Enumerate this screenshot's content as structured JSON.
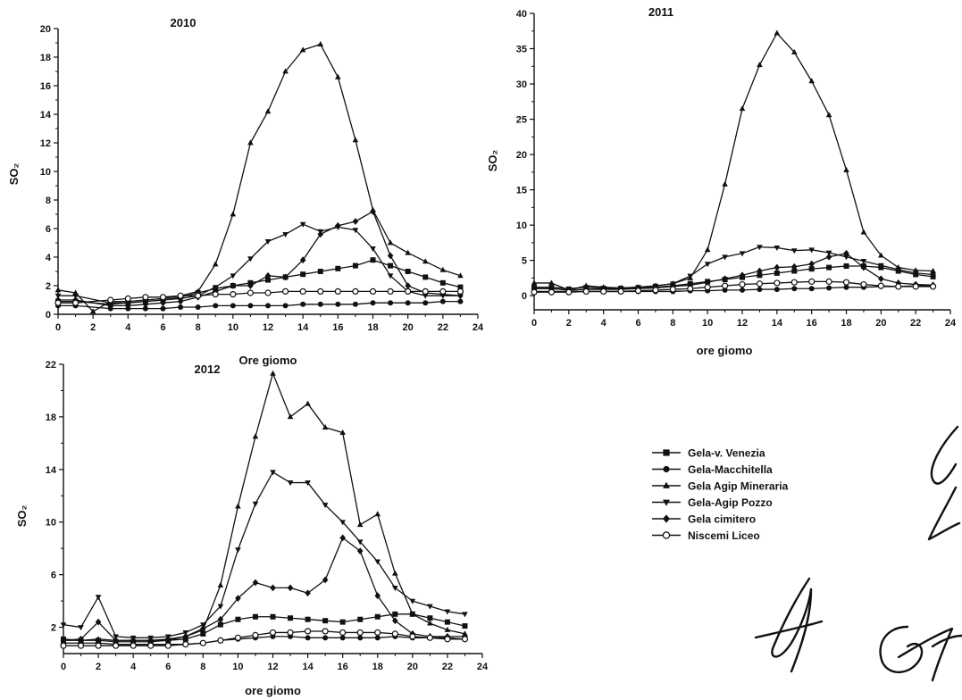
{
  "chart_data": [
    {
      "type": "line",
      "title": "2010",
      "xlabel": "Ore giomo",
      "ylabel": "SO₂",
      "xlim": [
        0,
        24
      ],
      "ylim": [
        0,
        20
      ],
      "xticks": [
        0,
        2,
        4,
        6,
        8,
        10,
        12,
        14,
        16,
        18,
        20,
        22,
        24
      ],
      "yticks": [
        0,
        2,
        4,
        6,
        8,
        10,
        12,
        14,
        16,
        18,
        20
      ],
      "x": [
        0,
        1,
        2,
        3,
        4,
        5,
        6,
        7,
        8,
        9,
        10,
        11,
        12,
        13,
        14,
        15,
        16,
        17,
        18,
        19,
        20,
        21,
        22,
        23
      ],
      "grid": false,
      "series": [
        {
          "name": "Gela-v. Venezia",
          "values": [
            0.9,
            0.9,
            null,
            0.7,
            0.8,
            0.9,
            1.0,
            1.2,
            1.5,
            1.8,
            2.0,
            2.2,
            2.4,
            2.6,
            2.8,
            3.0,
            3.2,
            3.4,
            3.8,
            3.4,
            3.0,
            2.6,
            2.2,
            1.9
          ]
        },
        {
          "name": "Gela-Macchitella",
          "values": [
            0.6,
            0.6,
            null,
            0.4,
            0.4,
            0.4,
            0.4,
            0.5,
            0.5,
            0.6,
            0.6,
            0.6,
            0.6,
            0.6,
            0.7,
            0.7,
            0.7,
            0.7,
            0.8,
            0.8,
            0.8,
            0.8,
            0.9,
            0.9
          ]
        },
        {
          "name": "Gela Agip Mineraria",
          "values": [
            1.7,
            1.5,
            0.2,
            0.9,
            0.9,
            1.0,
            1.1,
            1.3,
            1.6,
            3.5,
            7.0,
            12.0,
            14.2,
            17.0,
            18.5,
            18.9,
            16.6,
            12.2,
            7.3,
            5.0,
            4.3,
            3.7,
            3.1,
            2.7
          ]
        },
        {
          "name": "Gela-Agip Pozzo",
          "values": [
            1.3,
            1.3,
            null,
            0.8,
            0.8,
            0.9,
            1.0,
            1.1,
            1.3,
            1.9,
            2.7,
            3.9,
            5.1,
            5.6,
            6.3,
            5.8,
            6.1,
            5.9,
            4.6,
            2.7,
            1.6,
            1.3,
            1.3,
            1.3
          ]
        },
        {
          "name": "Gela cimitero",
          "values": [
            1.0,
            1.0,
            null,
            0.6,
            0.6,
            0.7,
            0.8,
            0.9,
            1.2,
            1.6,
            2.0,
            2.0,
            2.7,
            2.6,
            3.8,
            5.6,
            6.2,
            6.5,
            7.2,
            4.1,
            2.0,
            1.5,
            1.4,
            1.3
          ]
        },
        {
          "name": "Niscemi Liceo",
          "values": [
            0.8,
            0.8,
            null,
            1.0,
            1.1,
            1.2,
            1.2,
            1.3,
            1.3,
            1.4,
            1.4,
            1.5,
            1.5,
            1.6,
            1.6,
            1.6,
            1.6,
            1.6,
            1.6,
            1.6,
            1.6,
            1.6,
            1.6,
            1.6
          ]
        }
      ]
    },
    {
      "type": "line",
      "title": "2011",
      "xlabel": "ore giomo",
      "ylabel": "SO₂",
      "xlim": [
        0,
        24
      ],
      "ylim": [
        -2,
        40
      ],
      "xticks": [
        0,
        2,
        4,
        6,
        8,
        10,
        12,
        14,
        16,
        18,
        20,
        22,
        24
      ],
      "yticks": [
        0,
        5,
        10,
        15,
        20,
        25,
        30,
        35,
        40
      ],
      "x": [
        0,
        1,
        2,
        3,
        4,
        5,
        6,
        7,
        8,
        9,
        10,
        11,
        12,
        13,
        14,
        15,
        16,
        17,
        18,
        19,
        20,
        21,
        22,
        23
      ],
      "grid": false,
      "series": [
        {
          "name": "Gela-v. Venezia",
          "values": [
            1.0,
            1.0,
            0.8,
            0.9,
            1.0,
            1.0,
            1.1,
            1.2,
            1.4,
            1.7,
            2.0,
            2.3,
            2.6,
            2.9,
            3.2,
            3.5,
            3.8,
            4.0,
            4.2,
            4.2,
            4.0,
            3.5,
            3.0,
            2.7
          ]
        },
        {
          "name": "Gela-Macchitella",
          "values": [
            0.6,
            0.6,
            0.6,
            0.6,
            0.6,
            0.6,
            0.6,
            0.6,
            0.6,
            0.7,
            0.7,
            0.8,
            0.8,
            0.9,
            0.9,
            1.0,
            1.0,
            1.1,
            1.2,
            1.2,
            1.3,
            1.3,
            1.4,
            1.4
          ]
        },
        {
          "name": "Gela Agip Mineraria",
          "values": [
            1.8,
            1.8,
            0.8,
            1.4,
            1.2,
            1.1,
            1.2,
            1.4,
            1.7,
            2.5,
            6.5,
            15.8,
            26.5,
            32.7,
            37.2,
            34.5,
            30.4,
            25.6,
            17.8,
            9.0,
            5.7,
            4.0,
            3.6,
            3.5
          ]
        },
        {
          "name": "Gela-Agip Pozzo",
          "values": [
            1.2,
            1.2,
            1.0,
            1.2,
            1.1,
            1.1,
            1.2,
            1.4,
            1.7,
            2.8,
            4.5,
            5.5,
            6.0,
            6.9,
            6.8,
            6.4,
            6.5,
            6.1,
            5.5,
            4.9,
            4.3,
            3.7,
            3.2,
            3.0
          ]
        },
        {
          "name": "Gela cimitero",
          "values": [
            1.0,
            1.0,
            0.8,
            0.9,
            0.9,
            0.9,
            1.0,
            1.1,
            1.3,
            1.5,
            1.9,
            2.4,
            2.9,
            3.5,
            4.0,
            4.1,
            4.5,
            5.5,
            6.0,
            4.0,
            2.4,
            1.8,
            1.6,
            1.5
          ]
        },
        {
          "name": "Niscemi Liceo",
          "values": [
            0.5,
            0.5,
            0.5,
            0.6,
            0.6,
            0.6,
            0.7,
            0.8,
            0.9,
            1.0,
            1.2,
            1.4,
            1.6,
            1.7,
            1.8,
            1.9,
            2.0,
            2.0,
            1.9,
            1.6,
            1.4,
            1.3,
            1.3,
            1.3
          ]
        }
      ]
    },
    {
      "type": "line",
      "title": "2012",
      "xlabel": "ore giomo",
      "ylabel": "SO₂",
      "xlim": [
        0,
        24
      ],
      "ylim": [
        0,
        22
      ],
      "xticks": [
        0,
        2,
        4,
        6,
        8,
        10,
        12,
        14,
        16,
        18,
        20,
        22,
        24
      ],
      "yticks": [
        2,
        6,
        10,
        14,
        18,
        22
      ],
      "x": [
        0,
        1,
        2,
        3,
        4,
        5,
        6,
        7,
        8,
        9,
        10,
        11,
        12,
        13,
        14,
        15,
        16,
        17,
        18,
        19,
        20,
        21,
        22,
        23
      ],
      "grid": false,
      "series": [
        {
          "name": "Gela-v. Venezia",
          "values": [
            1.1,
            1.0,
            1.0,
            0.9,
            0.9,
            0.9,
            1.0,
            1.1,
            1.5,
            2.2,
            2.6,
            2.8,
            2.8,
            2.7,
            2.6,
            2.5,
            2.4,
            2.6,
            2.8,
            3.0,
            3.0,
            2.7,
            2.4,
            2.1
          ]
        },
        {
          "name": "Gela-Macchitella",
          "values": [
            0.8,
            0.8,
            0.8,
            0.7,
            0.7,
            0.7,
            0.7,
            0.7,
            0.8,
            1.0,
            1.1,
            1.2,
            1.3,
            1.3,
            1.2,
            1.2,
            1.2,
            1.2,
            1.2,
            1.3,
            1.2,
            1.2,
            1.2,
            1.1
          ]
        },
        {
          "name": "Gela Agip Mineraria",
          "values": [
            1.0,
            1.0,
            1.1,
            1.0,
            1.0,
            1.0,
            1.1,
            1.3,
            1.8,
            5.2,
            11.2,
            16.5,
            21.3,
            18.0,
            19.0,
            17.2,
            16.8,
            9.8,
            10.6,
            6.1,
            3.0,
            2.3,
            1.8,
            1.5
          ]
        },
        {
          "name": "Gela-Agip Pozzo",
          "values": [
            2.2,
            2.0,
            4.3,
            1.3,
            1.2,
            1.2,
            1.3,
            1.6,
            2.2,
            3.6,
            7.9,
            11.4,
            13.8,
            13.0,
            13.0,
            11.3,
            10.0,
            8.5,
            7.0,
            5.0,
            4.0,
            3.6,
            3.2,
            3.0
          ]
        },
        {
          "name": "Gela cimitero",
          "values": [
            1.0,
            1.1,
            2.4,
            1.0,
            1.0,
            1.0,
            1.0,
            1.3,
            1.9,
            2.6,
            4.2,
            5.4,
            5.0,
            5.0,
            4.6,
            5.6,
            8.8,
            7.8,
            4.4,
            2.5,
            1.5,
            1.3,
            1.3,
            1.3
          ]
        },
        {
          "name": "Niscemi Liceo",
          "values": [
            0.6,
            0.6,
            0.6,
            0.6,
            0.6,
            0.6,
            0.6,
            0.7,
            0.8,
            1.0,
            1.2,
            1.4,
            1.6,
            1.6,
            1.7,
            1.7,
            1.6,
            1.6,
            1.6,
            1.5,
            1.3,
            1.2,
            1.1,
            1.1
          ]
        }
      ]
    }
  ],
  "legend": {
    "placement": "right of 2012 panel",
    "entries": [
      {
        "name": "Gela-v. Venezia",
        "marker": "square"
      },
      {
        "name": "Gela-Macchitella",
        "marker": "circle"
      },
      {
        "name": "Gela Agip Mineraria",
        "marker": "triangle-up"
      },
      {
        "name": "Gela-Agip Pozzo",
        "marker": "triangle-down"
      },
      {
        "name": "Gela cimitero",
        "marker": "diamond"
      },
      {
        "name": "Niscemi Liceo",
        "marker": "open-circle"
      }
    ]
  },
  "colors": {
    "ink": "#111111",
    "background": "#ffffff"
  }
}
